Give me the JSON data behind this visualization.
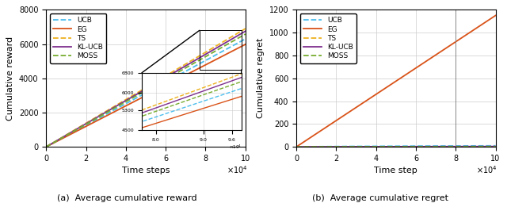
{
  "T": 100000,
  "n_points": 1000,
  "reward_slopes": {
    "UCB": 0.063,
    "EG": 0.0598,
    "TS": 0.069,
    "KL-UCB": 0.0675,
    "MOSS": 0.0658
  },
  "reward_colors": {
    "UCB": "#4dbeee",
    "EG": "#d95319",
    "TS": "#edb120",
    "KL-UCB": "#7e2f8e",
    "MOSS": "#77ac30"
  },
  "reward_linestyles": {
    "UCB": "--",
    "EG": "-",
    "TS": "--",
    "KL-UCB": "-",
    "MOSS": "--"
  },
  "regret_params": {
    "UCB": {
      "c": 0.0078,
      "alpha": 0.62
    },
    "EG": {
      "c": 0.0115,
      "alpha": 1.0
    },
    "TS": {
      "c": 0.0028,
      "alpha": 0.6
    },
    "KL-UCB": {
      "c": 0.0045,
      "alpha": 0.58
    },
    "MOSS": {
      "c": 0.0052,
      "alpha": 0.5
    }
  },
  "regret_colors": {
    "UCB": "#4dbeee",
    "EG": "#d95319",
    "TS": "#edb120",
    "KL-UCB": "#7e2f8e",
    "MOSS": "#77ac30"
  },
  "regret_linestyles": {
    "UCB": "--",
    "EG": "-",
    "TS": "--",
    "KL-UCB": "-",
    "MOSS": "--"
  },
  "legend_order": [
    "UCB",
    "EG",
    "TS",
    "KL-UCB",
    "MOSS"
  ],
  "fig_width": 6.4,
  "fig_height": 2.56,
  "caption_a": "(a)  Average cumulative reward",
  "caption_b": "(b)  Average cumulative regret",
  "ylabel_left": "Cumulative reward",
  "ylabel_right": "Cumulative regret",
  "xlabel_left": "Time steps",
  "xlabel_right": "Time step",
  "xlim": [
    0,
    100000
  ],
  "ylim_reward": [
    0,
    8000
  ],
  "ylim_regret": [
    0,
    1200
  ],
  "grid_color": "#cccccc",
  "inset_x1": 77000,
  "inset_x2": 98000,
  "inset_y1": 4500,
  "inset_y2": 6800,
  "vline_x": 80000
}
